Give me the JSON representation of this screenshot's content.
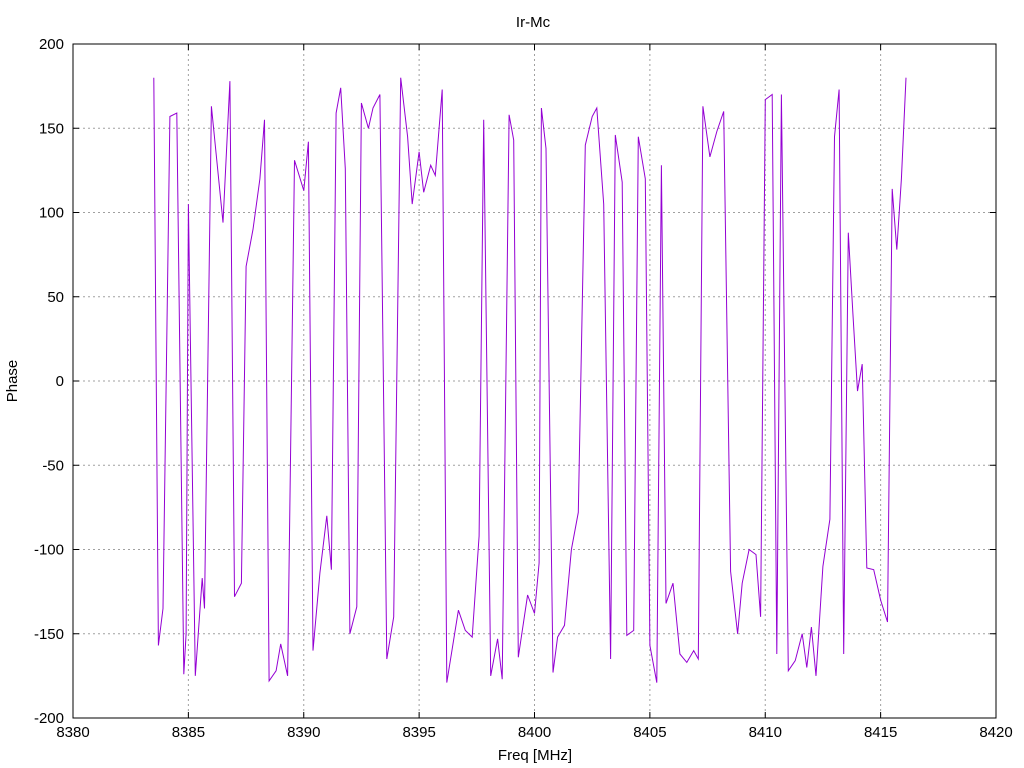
{
  "chart_data": {
    "type": "line",
    "title": "Ir-Mc",
    "xlabel": "Freq [MHz]",
    "ylabel": "Phase",
    "xlim": [
      8380,
      8420
    ],
    "ylim": [
      -200,
      200
    ],
    "xticks": [
      "8380",
      "8385",
      "8390",
      "8395",
      "8400",
      "8405",
      "8410",
      "8415",
      "8420"
    ],
    "yticks": [
      "200",
      "150",
      "100",
      "50",
      "0",
      "-50",
      "-100",
      "-150",
      "-200"
    ],
    "grid": true,
    "line_color": "#9400d3",
    "series": [
      {
        "values": [
          [
            8383.5,
            180
          ],
          [
            8383.7,
            -157
          ],
          [
            8383.9,
            -135
          ],
          [
            8384.2,
            157
          ],
          [
            8384.5,
            159
          ],
          [
            8384.8,
            -174
          ],
          [
            8384.9,
            -150
          ],
          [
            8385.0,
            105
          ],
          [
            8385.3,
            -175
          ],
          [
            8385.6,
            -117
          ],
          [
            8385.7,
            -135
          ],
          [
            8386.0,
            163
          ],
          [
            8386.2,
            135
          ],
          [
            8386.5,
            94
          ],
          [
            8386.8,
            178
          ],
          [
            8387.0,
            -128
          ],
          [
            8387.3,
            -120
          ],
          [
            8387.5,
            68
          ],
          [
            8387.8,
            90
          ],
          [
            8388.1,
            120
          ],
          [
            8388.3,
            155
          ],
          [
            8388.5,
            -178
          ],
          [
            8388.8,
            -172
          ],
          [
            8389.0,
            -156
          ],
          [
            8389.3,
            -175
          ],
          [
            8389.6,
            131
          ],
          [
            8390.0,
            113
          ],
          [
            8390.2,
            142
          ],
          [
            8390.4,
            -160
          ],
          [
            8390.7,
            -114
          ],
          [
            8391.0,
            -80
          ],
          [
            8391.2,
            -112
          ],
          [
            8391.4,
            159
          ],
          [
            8391.6,
            174
          ],
          [
            8391.8,
            126
          ],
          [
            8392.0,
            -150
          ],
          [
            8392.3,
            -134
          ],
          [
            8392.5,
            165
          ],
          [
            8392.8,
            150
          ],
          [
            8393.0,
            162
          ],
          [
            8393.3,
            170
          ],
          [
            8393.6,
            -165
          ],
          [
            8393.9,
            -140
          ],
          [
            8394.2,
            180
          ],
          [
            8394.5,
            145
          ],
          [
            8394.7,
            105
          ],
          [
            8395.0,
            136
          ],
          [
            8395.2,
            112
          ],
          [
            8395.5,
            128
          ],
          [
            8395.7,
            122
          ],
          [
            8396.0,
            173
          ],
          [
            8396.2,
            -179
          ],
          [
            8396.7,
            -136
          ],
          [
            8397.0,
            -148
          ],
          [
            8397.3,
            -152
          ],
          [
            8397.6,
            -92
          ],
          [
            8397.8,
            155
          ],
          [
            8398.1,
            -175
          ],
          [
            8398.4,
            -153
          ],
          [
            8398.6,
            -177
          ],
          [
            8398.9,
            158
          ],
          [
            8399.1,
            143
          ],
          [
            8399.3,
            -164
          ],
          [
            8399.7,
            -127
          ],
          [
            8400.0,
            -138
          ],
          [
            8400.2,
            -108
          ],
          [
            8400.3,
            162
          ],
          [
            8400.5,
            138
          ],
          [
            8400.8,
            -173
          ],
          [
            8401.0,
            -152
          ],
          [
            8401.3,
            -145
          ],
          [
            8401.6,
            -100
          ],
          [
            8401.9,
            -78
          ],
          [
            8402.2,
            140
          ],
          [
            8402.5,
            157
          ],
          [
            8402.7,
            162
          ],
          [
            8403.0,
            105
          ],
          [
            8403.3,
            -165
          ],
          [
            8403.5,
            146
          ],
          [
            8403.8,
            118
          ],
          [
            8404.0,
            -151
          ],
          [
            8404.3,
            -148
          ],
          [
            8404.5,
            145
          ],
          [
            8404.8,
            120
          ],
          [
            8405.0,
            -157
          ],
          [
            8405.3,
            -179
          ],
          [
            8405.5,
            128
          ],
          [
            8405.7,
            -132
          ],
          [
            8406.0,
            -120
          ],
          [
            8406.3,
            -162
          ],
          [
            8406.6,
            -167
          ],
          [
            8406.9,
            -160
          ],
          [
            8407.1,
            -165
          ],
          [
            8407.3,
            163
          ],
          [
            8407.6,
            133
          ],
          [
            8407.9,
            148
          ],
          [
            8408.2,
            160
          ],
          [
            8408.5,
            -113
          ],
          [
            8408.8,
            -150
          ],
          [
            8409.0,
            -120
          ],
          [
            8409.3,
            -100
          ],
          [
            8409.6,
            -103
          ],
          [
            8409.8,
            -140
          ],
          [
            8410.0,
            167
          ],
          [
            8410.3,
            170
          ],
          [
            8410.5,
            -162
          ],
          [
            8410.7,
            170
          ],
          [
            8411.0,
            -172
          ],
          [
            8411.3,
            -166
          ],
          [
            8411.6,
            -150
          ],
          [
            8411.8,
            -170
          ],
          [
            8412.0,
            -146
          ],
          [
            8412.2,
            -175
          ],
          [
            8412.5,
            -110
          ],
          [
            8412.8,
            -82
          ],
          [
            8413.0,
            145
          ],
          [
            8413.2,
            173
          ],
          [
            8413.4,
            -162
          ],
          [
            8413.6,
            88
          ],
          [
            8413.8,
            40
          ],
          [
            8414.0,
            -6
          ],
          [
            8414.2,
            10
          ],
          [
            8414.4,
            -111
          ],
          [
            8414.7,
            -112
          ],
          [
            8415.0,
            -130
          ],
          [
            8415.3,
            -143
          ],
          [
            8415.5,
            114
          ],
          [
            8415.7,
            78
          ],
          [
            8415.9,
            120
          ],
          [
            8416.1,
            180
          ]
        ]
      }
    ]
  }
}
